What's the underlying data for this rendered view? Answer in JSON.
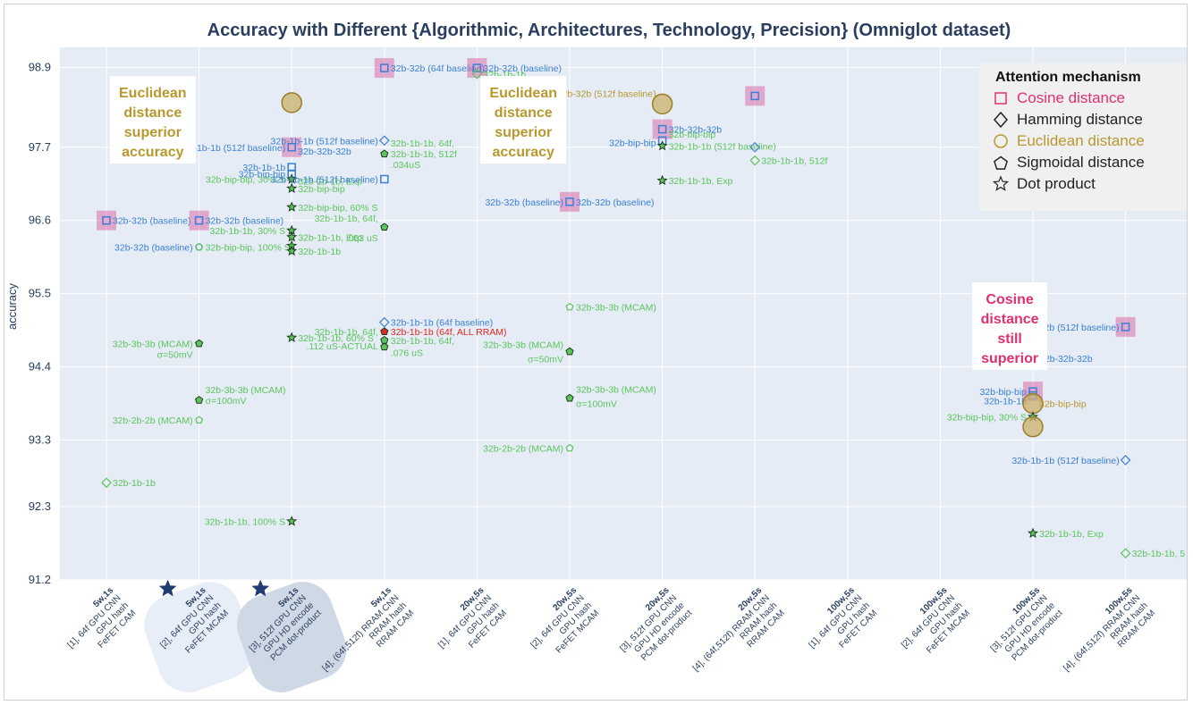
{
  "chart_data": {
    "type": "scatter",
    "title": "Accuracy with Different {Algorithmic, Architectures, Technology, Precision} (Omniglot dataset)",
    "xlabel": "",
    "ylabel": "accuracy",
    "ylim": [
      91.2,
      99.2
    ],
    "yticks": [
      "91.2",
      "92.3",
      "93.3",
      "94.4",
      "95.5",
      "96.6",
      "97.7",
      "98.9"
    ],
    "grid": true,
    "legend_placement": "top-right",
    "categories": [
      {
        "head": "5w,1s",
        "lines": [
          "[1], 64f GPU CNN",
          "GPU hash",
          "FeFET CAM"
        ]
      },
      {
        "head": "5w,1s",
        "lines": [
          "[2], 64f GPU CNN",
          "GPU hash",
          "FeFET MCAM"
        ]
      },
      {
        "head": "5w,1s",
        "lines": [
          "[3], 512f GPU CNN",
          "GPU HD encode",
          "PCM dot-product"
        ]
      },
      {
        "head": "5w,1s",
        "lines": [
          "[4], (64f,512f) RRAM CNN",
          "RRAM hash",
          "RRAM CAM"
        ]
      },
      {
        "head": "20w,5s",
        "lines": [
          "[1], 64f GPU CNN",
          "GPU hash",
          "FeFET CAM"
        ]
      },
      {
        "head": "20w,5s",
        "lines": [
          "[2], 64f GPU CNN",
          "GPU hash",
          "FeFET MCAM"
        ]
      },
      {
        "head": "20w,5s",
        "lines": [
          "[3], 512f GPU CNN",
          "GPU HD encode",
          "PCM dot-product"
        ]
      },
      {
        "head": "20w,5s",
        "lines": [
          "[4], (64f,512f) RRAM CNN",
          "RRAM hash",
          "RRAM CAM"
        ]
      },
      {
        "head": "100w,5s",
        "lines": [
          "[1], 64f GPU CNN",
          "GPU hash",
          "FeFET CAM"
        ]
      },
      {
        "head": "100w,5s",
        "lines": [
          "[2], 64f GPU CNN",
          "GPU hash",
          "FeFET MCAM"
        ]
      },
      {
        "head": "100w,5s",
        "lines": [
          "[3], 512f GPU CNN",
          "GPU HD encode",
          "PCM dot-product"
        ]
      },
      {
        "head": "100w,5s",
        "lines": [
          "[4], (64f,512f) RRAM CNN",
          "RRAM hash",
          "RRAM CAM"
        ]
      }
    ],
    "legend": {
      "title": "Attention mechanism",
      "items": [
        {
          "name": "Cosine distance",
          "symbol": "square",
          "color": "#e0306f"
        },
        {
          "name": "Hamming distance",
          "symbol": "diamond",
          "color": "#222222"
        },
        {
          "name": "Euclidean distance",
          "symbol": "circle",
          "color": "#b8982e"
        },
        {
          "name": "Sigmoidal distance",
          "symbol": "pentagon",
          "color": "#222222"
        },
        {
          "name": "Dot product",
          "symbol": "star",
          "color": "#222222"
        }
      ]
    },
    "colors": {
      "blue": "#3a7fd5",
      "green": "#5cc55c",
      "red": "#e0281e",
      "pink": "#d9559c",
      "gold": "#b8982e",
      "darkgreen": "#3e8e3e"
    },
    "points": [
      {
        "x": 0,
        "y": 96.6,
        "symbol": "square",
        "color": "blue",
        "label": "32b-32b (baseline)",
        "anchor": "right",
        "highlight": "square"
      },
      {
        "x": 0,
        "y": 92.66,
        "symbol": "diamond",
        "color": "green",
        "label": "32b-1b-1b",
        "anchor": "right"
      },
      {
        "x": 1,
        "y": 96.6,
        "symbol": "square",
        "color": "blue",
        "label": "32b-32b (baseline)",
        "anchor": "right",
        "highlight": "square"
      },
      {
        "x": 1,
        "y": 96.2,
        "symbol": "circle",
        "color": "blue",
        "label": "32b-32b (baseline)",
        "anchor": "left"
      },
      {
        "x": 1,
        "y": 96.2,
        "symbol": "pentagon",
        "color": "green",
        "label": "32b-bip-bip, 100% S",
        "anchor": "right"
      },
      {
        "x": 1,
        "y": 94.75,
        "symbol": "pentagon-filled",
        "color": "green",
        "label": "32b-3b-3b (MCAM)",
        "anchor": "left"
      },
      {
        "x": 1,
        "y": 94.75,
        "symbol": "none",
        "color": "green",
        "label": "σ=50mV",
        "anchor": "left",
        "dy": 12
      },
      {
        "x": 1,
        "y": 93.9,
        "symbol": "pentagon-filled",
        "color": "green",
        "label": "32b-3b-3b (MCAM)",
        "anchor": "right",
        "dy": -12
      },
      {
        "x": 1,
        "y": 93.9,
        "symbol": "none",
        "color": "green",
        "label": "σ=100mV",
        "anchor": "right"
      },
      {
        "x": 1,
        "y": 93.6,
        "symbol": "pentagon",
        "color": "green",
        "label": "32b-2b-2b (MCAM)",
        "anchor": "left"
      },
      {
        "x": 2,
        "y": 97.7,
        "symbol": "square",
        "color": "blue",
        "label": "32b-1b-1b (512f baseline)",
        "anchor": "left",
        "highlight": "square"
      },
      {
        "x": 2,
        "y": 97.7,
        "symbol": "none",
        "color": "blue",
        "label": "32b-32b-32b",
        "anchor": "right",
        "dy": 4
      },
      {
        "x": 2,
        "y": 97.4,
        "symbol": "square",
        "color": "blue",
        "label": "32b-1b-1b",
        "anchor": "left"
      },
      {
        "x": 2,
        "y": 97.3,
        "symbol": "square",
        "color": "blue",
        "label": "32b-bip-bip",
        "anchor": "left"
      },
      {
        "x": 2,
        "y": 97.22,
        "symbol": "star",
        "color": "green",
        "label": "32b-bip-bip, 30% S",
        "anchor": "left"
      },
      {
        "x": 2,
        "y": 97.22,
        "symbol": "none",
        "color": "green",
        "label": "32b-1b-1b, Exp",
        "anchor": "right",
        "dy": 2
      },
      {
        "x": 2,
        "y": 97.08,
        "symbol": "star",
        "color": "green",
        "label": "32b-bip-bip",
        "anchor": "right"
      },
      {
        "x": 2,
        "y": 96.8,
        "symbol": "star",
        "color": "green",
        "label": "32b-bip-bip, 60% S",
        "anchor": "right"
      },
      {
        "x": 2,
        "y": 96.45,
        "symbol": "star",
        "color": "green",
        "label": "32b-1b-1b, 30% S",
        "anchor": "left"
      },
      {
        "x": 2,
        "y": 96.35,
        "symbol": "star",
        "color": "green",
        "label": "32b-1b-1b, Exp",
        "anchor": "right"
      },
      {
        "x": 2,
        "y": 96.22,
        "symbol": "star",
        "color": "green",
        "label": "32b-bip-bip",
        "anchor": "none"
      },
      {
        "x": 2,
        "y": 96.14,
        "symbol": "star",
        "color": "green",
        "label": "32b-1b-1b",
        "anchor": "right"
      },
      {
        "x": 2,
        "y": 94.84,
        "symbol": "star",
        "color": "green",
        "label": "32b-1b-1b, 60% S",
        "anchor": "right"
      },
      {
        "x": 2,
        "y": 92.08,
        "symbol": "star",
        "color": "green",
        "label": "32b-1b-1b, 100% S",
        "anchor": "left"
      },
      {
        "x": 2,
        "y": 98.37,
        "symbol": "circle-big",
        "color": "gold",
        "label": "",
        "anchor": "none"
      },
      {
        "x": 3,
        "y": 98.89,
        "symbol": "square",
        "color": "blue",
        "label": "32b-32b (64f baseline)",
        "anchor": "right",
        "highlight": "square"
      },
      {
        "x": 3,
        "y": 97.8,
        "symbol": "diamond",
        "color": "blue",
        "label": "32b-1b-1b (512f baseline)",
        "anchor": "left"
      },
      {
        "x": 3,
        "y": 97.6,
        "symbol": "pentagon-filled",
        "color": "green",
        "label": "32b-1b-1b, 64f,",
        "anchor": "right",
        "dy": -12
      },
      {
        "x": 3,
        "y": 97.6,
        "symbol": "none",
        "color": "green",
        "label": "32b-1b-1b, 512f",
        "anchor": "right"
      },
      {
        "x": 3,
        "y": 97.6,
        "symbol": "none",
        "color": "green",
        "label": ".034uS",
        "anchor": "right",
        "dy": 12
      },
      {
        "x": 3,
        "y": 97.22,
        "symbol": "square",
        "color": "blue",
        "label": "32b-1b-1b (512f baseline)",
        "anchor": "left"
      },
      {
        "x": 3,
        "y": 96.5,
        "symbol": "pentagon-filled",
        "color": "green",
        "label": "32b-1b-1b, 64f,",
        "anchor": "left",
        "dy": -10
      },
      {
        "x": 3,
        "y": 96.5,
        "symbol": "none",
        "color": "green",
        "label": ".053 uS",
        "anchor": "left",
        "dy": 12
      },
      {
        "x": 3,
        "y": 95.07,
        "symbol": "diamond",
        "color": "blue",
        "label": "32b-1b-1b (64f baseline)",
        "anchor": "right"
      },
      {
        "x": 3,
        "y": 94.93,
        "symbol": "pentagon-filled",
        "color": "red",
        "label": "32b-1b-1b (64f, ALL RRAM)",
        "anchor": "right"
      },
      {
        "x": 3,
        "y": 94.93,
        "symbol": "none",
        "color": "green",
        "label": "32b-1b-1b, 64f,",
        "anchor": "left"
      },
      {
        "x": 3,
        "y": 94.8,
        "symbol": "pentagon-filled",
        "color": "green",
        "label": ".112 uS-ACTUAL",
        "anchor": "left",
        "dy": 6
      },
      {
        "x": 3,
        "y": 94.8,
        "symbol": "none",
        "color": "green",
        "label": "32b-1b-1b, 64f,",
        "anchor": "right"
      },
      {
        "x": 3,
        "y": 94.7,
        "symbol": "pentagon-filled",
        "color": "green",
        "label": ".076 uS",
        "anchor": "right",
        "dy": 6
      },
      {
        "x": 4,
        "y": 98.89,
        "symbol": "square",
        "color": "blue",
        "label": "32b-32b (baseline)",
        "anchor": "right",
        "highlight": "square"
      },
      {
        "x": 4,
        "y": 98.8,
        "symbol": "diamond",
        "color": "green",
        "label": "32b-1b-1b",
        "anchor": "right"
      },
      {
        "x": 5,
        "y": 96.88,
        "symbol": "square",
        "color": "blue",
        "label": "32b-32b (baseline)",
        "anchor": "left",
        "highlight": "square"
      },
      {
        "x": 5,
        "y": 96.88,
        "symbol": "none",
        "color": "blue",
        "label": "32b-32b (baseline)",
        "anchor": "right"
      },
      {
        "x": 5,
        "y": 95.3,
        "symbol": "pentagon",
        "color": "green",
        "label": "32b-3b-3b (MCAM)",
        "anchor": "right"
      },
      {
        "x": 5,
        "y": 94.63,
        "symbol": "pentagon-filled",
        "color": "green",
        "label": "32b-3b-3b (MCAM)",
        "anchor": "left",
        "dy": -8
      },
      {
        "x": 5,
        "y": 94.63,
        "symbol": "none",
        "color": "green",
        "label": "σ=50mV",
        "anchor": "left",
        "dy": 8
      },
      {
        "x": 5,
        "y": 93.93,
        "symbol": "pentagon-filled",
        "color": "green",
        "label": "32b-3b-3b (MCAM)",
        "anchor": "right",
        "dy": -10
      },
      {
        "x": 5,
        "y": 93.93,
        "symbol": "none",
        "color": "green",
        "label": "σ=100mV",
        "anchor": "right",
        "dy": 6
      },
      {
        "x": 5,
        "y": 93.18,
        "symbol": "pentagon",
        "color": "green",
        "label": "32b-2b-2b (MCAM)",
        "anchor": "left"
      },
      {
        "x": 6,
        "y": 98.35,
        "symbol": "circle-big",
        "color": "gold",
        "label": "32b-32b (512f baseline)",
        "anchor": "left",
        "dy": -12
      },
      {
        "x": 6,
        "y": 97.97,
        "symbol": "square",
        "color": "blue",
        "label": "32b-32b-32b",
        "anchor": "right",
        "highlight": "square"
      },
      {
        "x": 6,
        "y": 97.9,
        "symbol": "none",
        "color": "green",
        "label": "32b-bip-bip",
        "anchor": "right"
      },
      {
        "x": 6,
        "y": 97.8,
        "symbol": "square",
        "color": "blue",
        "label": "32b-bip-bip",
        "anchor": "left",
        "dy": 2
      },
      {
        "x": 6,
        "y": 97.72,
        "symbol": "star",
        "color": "green",
        "label": "32b-1b-1b (512f baseline)",
        "anchor": "right"
      },
      {
        "x": 6,
        "y": 97.2,
        "symbol": "star",
        "color": "green",
        "label": "32b-1b-1b, Exp",
        "anchor": "right"
      },
      {
        "x": 7,
        "y": 98.47,
        "symbol": "square",
        "color": "blue",
        "label": "",
        "anchor": "none",
        "highlight": "square"
      },
      {
        "x": 7,
        "y": 97.7,
        "symbol": "diamond",
        "color": "blue",
        "label": "",
        "anchor": "none"
      },
      {
        "x": 7,
        "y": 97.5,
        "symbol": "diamond",
        "color": "green",
        "label": "32b-1b-1b, 512f",
        "anchor": "right"
      },
      {
        "x": 10,
        "y": 94.53,
        "symbol": "square",
        "color": "blue",
        "label": "32b-32b-32b",
        "anchor": "right",
        "highlight": "square"
      },
      {
        "x": 10,
        "y": 94.03,
        "symbol": "square",
        "color": "blue",
        "label": "32b-bip-bip",
        "anchor": "left",
        "highlight": "square"
      },
      {
        "x": 10,
        "y": 93.97,
        "symbol": "square",
        "color": "blue",
        "label": "32b-1b-1b",
        "anchor": "left",
        "dy": 6
      },
      {
        "x": 10,
        "y": 93.85,
        "symbol": "circle-big",
        "color": "gold",
        "label": "32b-bip-bip",
        "anchor": "right"
      },
      {
        "x": 10,
        "y": 93.65,
        "symbol": "star",
        "color": "green",
        "label": "32b-bip-bip, 30% S",
        "anchor": "left"
      },
      {
        "x": 10,
        "y": 93.5,
        "symbol": "circle-big",
        "color": "gold",
        "label": "",
        "anchor": "none"
      },
      {
        "x": 10,
        "y": 91.9,
        "symbol": "star",
        "color": "green",
        "label": "32b-1b-1b, Exp",
        "anchor": "right"
      },
      {
        "x": 11,
        "y": 95.0,
        "symbol": "square",
        "color": "blue",
        "label": "32b-32b (512f baseline)",
        "anchor": "left",
        "highlight": "square"
      },
      {
        "x": 11,
        "y": 93.0,
        "symbol": "diamond",
        "color": "blue",
        "label": "32b-1b-1b (512f baseline)",
        "anchor": "left"
      },
      {
        "x": 11,
        "y": 91.6,
        "symbol": "diamond",
        "color": "green",
        "label": "32b-1b-1b, 5",
        "anchor": "right"
      }
    ],
    "annotations": [
      {
        "text": [
          "Euclidean",
          "distance",
          "superior",
          "accuracy"
        ],
        "color": "#b8982e",
        "x": 0.5,
        "y": 98.3
      },
      {
        "text": [
          "Euclidean",
          "distance",
          "superior",
          "accuracy"
        ],
        "color": "#b8982e",
        "x": 4.5,
        "y": 98.3
      },
      {
        "text": [
          "Cosine",
          "distance",
          "still",
          "superior"
        ],
        "color": "#e0306f",
        "x": 9.75,
        "y": 95.2
      }
    ],
    "highlighted_categories": [
      1,
      2
    ]
  }
}
